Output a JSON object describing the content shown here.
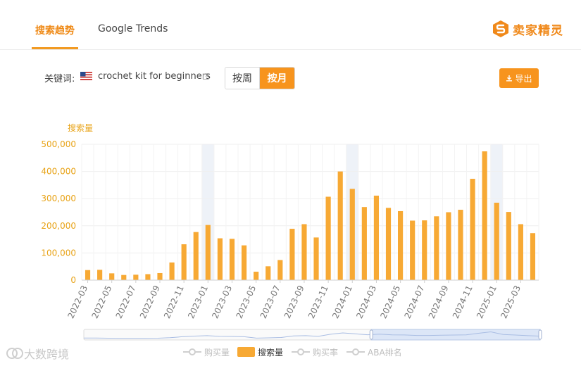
{
  "header": {
    "tabs": [
      {
        "label": "搜索趋势",
        "active": true
      },
      {
        "label": "Google Trends",
        "active": false
      }
    ],
    "brand": "卖家精灵"
  },
  "keyword_row": {
    "label": "关键词:",
    "keyword": "crochet kit for beginners",
    "toggle": [
      {
        "label": "按周",
        "active": false
      },
      {
        "label": "按月",
        "active": true
      }
    ],
    "export_label": "导出"
  },
  "colors": {
    "accent": "#f7941d",
    "bar": "#f7a934",
    "axis_text": "#e8a317",
    "highlight": "#eef2f8"
  },
  "chart_data": {
    "type": "bar",
    "ylabel": "搜索量",
    "ylim": [
      0,
      500000
    ],
    "yticks": [
      "0",
      "100,000",
      "200,000",
      "300,000",
      "400,000",
      "500,000"
    ],
    "categories": [
      "2022-03",
      "2022-04",
      "2022-05",
      "2022-06",
      "2022-07",
      "2022-08",
      "2022-09",
      "2022-10",
      "2022-11",
      "2022-12",
      "2023-01",
      "2023-02",
      "2023-03",
      "2023-04",
      "2023-05",
      "2023-06",
      "2023-07",
      "2023-08",
      "2023-09",
      "2023-10",
      "2023-11",
      "2023-12",
      "2024-01",
      "2024-02",
      "2024-03",
      "2024-04",
      "2024-05",
      "2024-06",
      "2024-07",
      "2024-08",
      "2024-09",
      "2024-10",
      "2024-11",
      "2024-12",
      "2025-01",
      "2025-02",
      "2025-03",
      "2025-04"
    ],
    "xtick_labels": [
      "2022-03",
      "2022-05",
      "2022-07",
      "2022-09",
      "2022-11",
      "2023-01",
      "2023-03",
      "2023-05",
      "2023-07",
      "2023-09",
      "2023-11",
      "2024-01",
      "2024-03",
      "2024-05",
      "2024-07",
      "2024-09",
      "2024-11",
      "2025-01",
      "2025-03"
    ],
    "series": [
      {
        "name": "搜索量",
        "values": [
          37000,
          38000,
          25000,
          19000,
          20000,
          22000,
          26000,
          65000,
          132000,
          177000,
          203000,
          154000,
          152000,
          128000,
          31000,
          51000,
          74000,
          189000,
          206000,
          157000,
          307000,
          400000,
          336000,
          269000,
          311000,
          266000,
          254000,
          219000,
          220000,
          235000,
          250000,
          259000,
          373000,
          474000,
          285000,
          251000,
          206000,
          173000
        ]
      }
    ],
    "highlighted_categories": [
      "2023-01",
      "2024-01",
      "2025-01"
    ],
    "grid": true,
    "legend_position": "bottom",
    "legend": [
      {
        "label": "购买量",
        "active": false
      },
      {
        "label": "搜索量",
        "active": true
      },
      {
        "label": "购买率",
        "active": false
      },
      {
        "label": "ABA排名",
        "active": false
      }
    ]
  },
  "watermark": "大数跨境"
}
